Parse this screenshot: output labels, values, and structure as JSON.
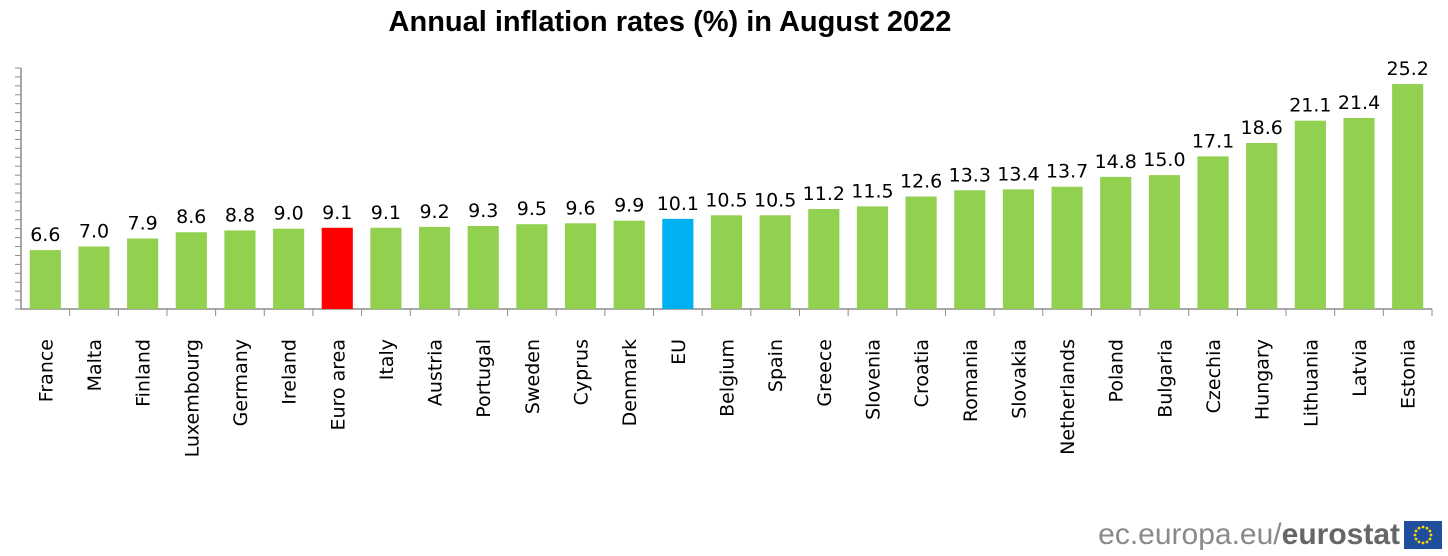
{
  "chart_data": {
    "type": "bar",
    "title": "Annual inflation rates (%) in August 2022",
    "xlabel": "",
    "ylabel": "",
    "ylim": [
      0,
      27
    ],
    "categories": [
      "France",
      "Malta",
      "Finland",
      "Luxembourg",
      "Germany",
      "Ireland",
      "Euro area",
      "Italy",
      "Austria",
      "Portugal",
      "Sweden",
      "Cyprus",
      "Denmark",
      "EU",
      "Belgium",
      "Spain",
      "Greece",
      "Slovenia",
      "Croatia",
      "Romania",
      "Slovakia",
      "Netherlands",
      "Poland",
      "Bulgaria",
      "Czechia",
      "Hungary",
      "Lithuania",
      "Latvia",
      "Estonia"
    ],
    "values": [
      6.6,
      7.0,
      7.9,
      8.6,
      8.8,
      9.0,
      9.1,
      9.1,
      9.2,
      9.3,
      9.5,
      9.6,
      9.9,
      10.1,
      10.5,
      10.5,
      11.2,
      11.5,
      12.6,
      13.3,
      13.4,
      13.7,
      14.8,
      15.0,
      17.1,
      18.6,
      21.1,
      21.4,
      25.2
    ],
    "value_labels": [
      "6.6",
      "7.0",
      "7.9",
      "8.6",
      "8.8",
      "9.0",
      "9.1",
      "9.1",
      "9.2",
      "9.3",
      "9.5",
      "9.6",
      "9.9",
      "10.1",
      "10.5",
      "10.5",
      "11.2",
      "11.5",
      "12.6",
      "13.3",
      "13.4",
      "13.7",
      "14.8",
      "15.0",
      "17.1",
      "18.6",
      "21.1",
      "21.4",
      "25.2"
    ],
    "colors": {
      "default": "#92d050",
      "highlights": {
        "Euro area": "#ff0000",
        "EU": "#00b0f0"
      }
    },
    "grid": false,
    "legend": "none"
  },
  "footer": {
    "source_prefix": "ec.europa.eu/",
    "source_brand": "eurostat",
    "flag_icon": "eu-flag-icon"
  }
}
